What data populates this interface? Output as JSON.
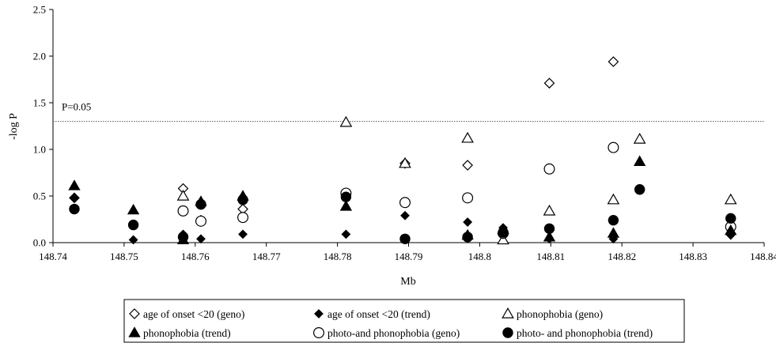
{
  "chart_data": {
    "type": "scatter",
    "xlabel": "Mb",
    "ylabel": "-log P",
    "xlim": [
      148.74,
      148.84
    ],
    "ylim": [
      0,
      2.5
    ],
    "x_ticks": [
      "148.74",
      "148.75",
      "148.76",
      "148.77",
      "148.78",
      "148.79",
      "148.8",
      "148.81",
      "148.82",
      "148.83",
      "148.84"
    ],
    "y_ticks": [
      "0.0",
      "0.5",
      "1.0",
      "1.5",
      "2.0",
      "2.5"
    ],
    "grid": false,
    "reference_line": {
      "y": 1.3,
      "label": "P=0.05"
    },
    "legend_position": "bottom",
    "series": [
      {
        "name": "age of onset <20 (geno)",
        "marker": "diamond-open",
        "x": [
          148.743,
          148.7583,
          148.7608,
          148.7667,
          148.7895,
          148.7983,
          148.8098,
          148.8188
        ],
        "y": [
          0.48,
          0.58,
          0.24,
          0.36,
          0.85,
          0.83,
          1.71,
          1.94
        ]
      },
      {
        "name": "age of onset <20 (trend)",
        "marker": "diamond-filled",
        "x": [
          148.743,
          148.7513,
          148.7583,
          148.7608,
          148.7667,
          148.7812,
          148.7895,
          148.7983,
          148.8033,
          148.8098,
          148.8188,
          148.8353
        ],
        "y": [
          0.48,
          0.03,
          0.09,
          0.04,
          0.09,
          0.09,
          0.29,
          0.22,
          0.16,
          0.04,
          0.04,
          0.08
        ]
      },
      {
        "name": "phonophobia (geno)",
        "marker": "triangle-open",
        "x": [
          148.7583,
          148.7812,
          148.7895,
          148.7983,
          148.8033,
          148.8098,
          148.8188,
          148.8225,
          148.8353
        ],
        "y": [
          0.5,
          1.29,
          0.85,
          1.12,
          0.03,
          0.34,
          0.46,
          1.11,
          0.46
        ]
      },
      {
        "name": "phonophobia (trend)",
        "marker": "triangle-filled",
        "x": [
          148.743,
          148.7513,
          148.7583,
          148.7608,
          148.7667,
          148.7812,
          148.7983,
          148.8033,
          148.8098,
          148.8188,
          148.8225,
          148.8353
        ],
        "y": [
          0.61,
          0.35,
          0.03,
          0.44,
          0.5,
          0.39,
          0.08,
          0.14,
          0.06,
          0.1,
          0.87,
          0.13
        ]
      },
      {
        "name": "photo-and phonophobia (geno)",
        "marker": "circle-open",
        "x": [
          148.7583,
          148.7608,
          148.7667,
          148.7812,
          148.7895,
          148.7983,
          148.8033,
          148.8098,
          148.8188,
          148.8353
        ],
        "y": [
          0.34,
          0.23,
          0.27,
          0.53,
          0.43,
          0.48,
          0.1,
          0.79,
          1.02,
          0.17
        ]
      },
      {
        "name": "photo- and phonophobia (trend)",
        "marker": "circle-filled",
        "x": [
          148.743,
          148.7513,
          148.7583,
          148.7608,
          148.7667,
          148.7812,
          148.7895,
          148.7983,
          148.8033,
          148.8098,
          148.8188,
          148.8225,
          148.8353
        ],
        "y": [
          0.36,
          0.19,
          0.06,
          0.41,
          0.46,
          0.49,
          0.04,
          0.06,
          0.11,
          0.15,
          0.24,
          0.57,
          0.26
        ]
      }
    ]
  },
  "colors": {
    "axis": "#000000",
    "marker": "#000000",
    "reference_line": "#555555"
  }
}
